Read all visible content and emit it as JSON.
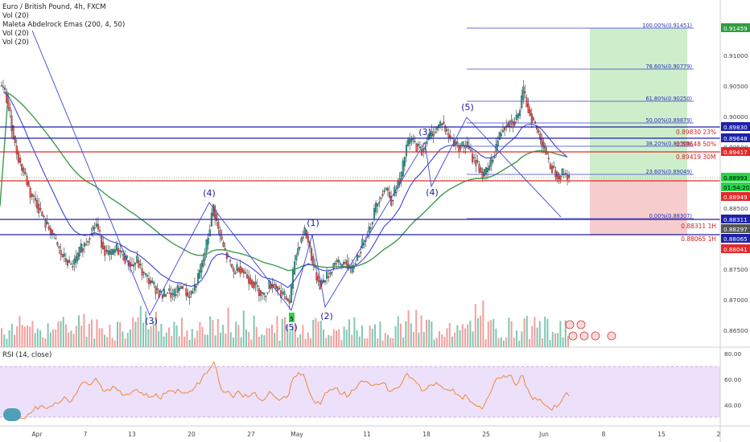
{
  "legend": {
    "symbol": "Euro / British Pound, 4h, FXCM",
    "studies": [
      "Vol (20)",
      "Maleta Abdelrock Emas (200, 4, 50)",
      "Vol (20)",
      "Vol (20)"
    ]
  },
  "rsi": {
    "title": "RSI (14, close)",
    "ticks": [
      "80.00",
      "60.00",
      "40.00"
    ]
  },
  "price_axis": {
    "ticks": [
      "0.91000",
      "0.90500",
      "0.90000",
      "0.89500",
      "0.88500",
      "0.88000",
      "0.87500",
      "0.87000",
      "0.86500"
    ],
    "labels": [
      {
        "text": "0.91459",
        "bg": "#2e9e3e",
        "fg": "#ffffff"
      },
      {
        "text": "0.89830",
        "bg": "#1e22a8",
        "fg": "#ffffff"
      },
      {
        "text": "0.89648",
        "bg": "#1e22a8",
        "fg": "#ffffff"
      },
      {
        "text": "0.89417",
        "bg": "#e02b2b",
        "fg": "#ffffff"
      },
      {
        "text": "0.88993",
        "bg": "#2bd44a",
        "fg": "#000000"
      },
      {
        "text": "01:54:20",
        "bg": "#2bd44a",
        "fg": "#000000"
      },
      {
        "text": "0.88949",
        "bg": "#e02b2b",
        "fg": "#ffffff"
      },
      {
        "text": "0.88311",
        "bg": "#1e22a8",
        "fg": "#ffffff"
      },
      {
        "text": "0.88297",
        "bg": "#555555",
        "fg": "#ffffff"
      },
      {
        "text": "0.88065",
        "bg": "#1e22a8",
        "fg": "#ffffff"
      },
      {
        "text": "0.88041",
        "bg": "#e02b2b",
        "fg": "#ffffff"
      }
    ]
  },
  "time_axis": {
    "labels": [
      "Apr",
      "7",
      "13",
      "20",
      "27",
      "May",
      "11",
      "18",
      "25",
      "Jun",
      "8",
      "15",
      "2"
    ]
  },
  "fib_labels": [
    "100.00%(0.91451)",
    "78.60%(0.90779)",
    "61.80%(0.90250)",
    "50.00%(0.89879)",
    "38.20%(0.89508)",
    "23.60%(0.89049)",
    "0.00%(0.88307)"
  ],
  "level_labels": [
    "0.89830 23%",
    "0.89648 50%",
    "0.89419 30M",
    "0.88311 1H",
    "0.88065 1H"
  ],
  "wave_labels": [
    "(3)",
    "(4)",
    "(5)",
    "(1)",
    "(2)",
    "(3)",
    "(4)",
    "(5)"
  ],
  "marker_label": "5",
  "colors": {
    "blue_level": "#1e22a8",
    "red_level": "#e02b2b",
    "up": "#26a69a",
    "down": "#ef5350",
    "ema_green": "#3f9a50",
    "ema_blue": "#3c44d6",
    "rsi_line": "#f07f2a",
    "rsi_band": "#ece0fa",
    "target": "#cdeecb",
    "stop": "#f6cccc"
  },
  "chart_data": {
    "type": "candlestick",
    "symbol": "EURGBP",
    "timeframe": "4h",
    "close_approx": [
      0.904,
      0.9,
      0.895,
      0.892,
      0.89,
      0.887,
      0.886,
      0.884,
      0.882,
      0.881,
      0.879,
      0.877,
      0.876,
      0.875,
      0.876,
      0.878,
      0.879,
      0.881,
      0.882,
      0.879,
      0.877,
      0.877,
      0.878,
      0.877,
      0.876,
      0.875,
      0.876,
      0.874,
      0.873,
      0.872,
      0.871,
      0.87,
      0.871,
      0.87,
      0.871,
      0.872,
      0.87,
      0.871,
      0.873,
      0.876,
      0.88,
      0.885,
      0.881,
      0.878,
      0.876,
      0.874,
      0.875,
      0.874,
      0.873,
      0.872,
      0.871,
      0.87,
      0.872,
      0.872,
      0.871,
      0.87,
      0.869,
      0.876,
      0.879,
      0.881,
      0.878,
      0.874,
      0.872,
      0.873,
      0.874,
      0.876,
      0.875,
      0.876,
      0.874,
      0.876,
      0.878,
      0.88,
      0.882,
      0.885,
      0.887,
      0.888,
      0.886,
      0.888,
      0.89,
      0.895,
      0.896,
      0.895,
      0.894,
      0.896,
      0.897,
      0.898,
      0.899,
      0.897,
      0.896,
      0.895,
      0.895,
      0.895,
      0.893,
      0.892,
      0.89,
      0.891,
      0.893,
      0.896,
      0.898,
      0.899,
      0.899,
      0.9,
      0.904,
      0.901,
      0.899,
      0.897,
      0.895,
      0.892,
      0.891,
      0.89,
      0.8905,
      0.8899
    ]
  }
}
